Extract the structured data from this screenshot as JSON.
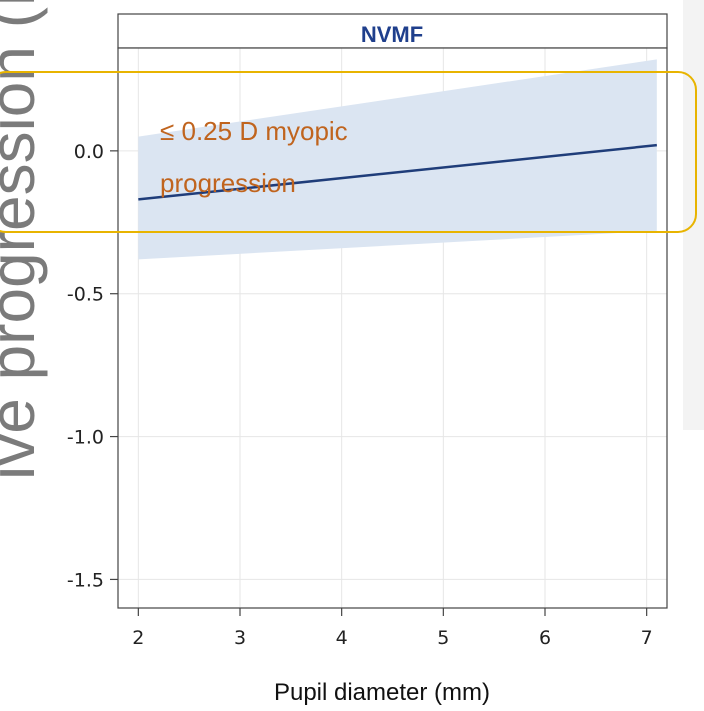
{
  "chart_data": {
    "type": "line",
    "panel_title": "NVMF",
    "xlabel": "Pupil diameter (mm)",
    "ylabel": "ive progression (D) or percentage of participants",
    "xlim": [
      1.8,
      7.2
    ],
    "ylim": [
      -1.6,
      0.36
    ],
    "x_ticks": [
      "2",
      "3",
      "4",
      "5",
      "6",
      "7"
    ],
    "y_ticks": [
      "0.0",
      "-0.5",
      "-1.0",
      "-1.5"
    ],
    "x_tick_values": [
      2,
      3,
      4,
      5,
      6,
      7
    ],
    "y_tick_values": [
      0.0,
      -0.5,
      -1.0,
      -1.5
    ],
    "grid": true,
    "series": [
      {
        "x": [
          2,
          7.1
        ],
        "y": [
          -0.17,
          0.02
        ],
        "ci_lower": [
          -0.38,
          -0.28
        ],
        "ci_upper": [
          0.05,
          0.32
        ]
      }
    ],
    "colors": {
      "line": "#1f3d7a",
      "band": "#dbe5f2",
      "highlight": "#e8b400",
      "annotation": "#c0641e"
    },
    "annotation": {
      "text_line1": "≤ 0.25 D myopic",
      "text_line2": "progression",
      "highlight_y_range": [
        -0.26,
        0.3
      ]
    }
  }
}
